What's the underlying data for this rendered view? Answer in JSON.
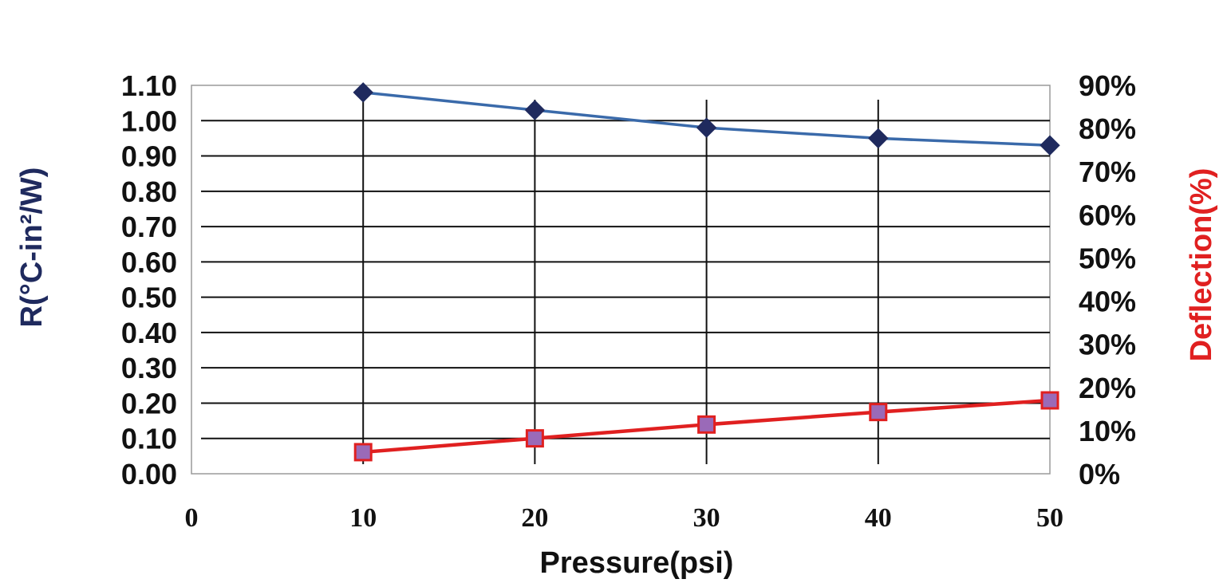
{
  "chart_data": {
    "type": "line",
    "title": "",
    "xlabel": "Pressure(psi)",
    "ylabel_left": "R(°C-in²/W)",
    "ylabel_right": "Deflection(%)",
    "x_ticks": [
      "0",
      "10",
      "20",
      "30",
      "40",
      "50"
    ],
    "xlim": [
      0,
      50
    ],
    "y_left_ticks": [
      "0.00",
      "0.10",
      "0.20",
      "0.30",
      "0.40",
      "0.50",
      "0.60",
      "0.70",
      "0.80",
      "0.90",
      "1.00",
      "1.10"
    ],
    "ylim_left": [
      0,
      1.1
    ],
    "y_right_ticks": [
      "0%",
      "10%",
      "20%",
      "30%",
      "40%",
      "50%",
      "60%",
      "70%",
      "80%",
      "90%"
    ],
    "ylim_right": [
      0,
      90
    ],
    "grid": true,
    "series": [
      {
        "axis": "left",
        "marker": "diamond",
        "color": "#3a6aaa",
        "marker_color": "#1f2a5e",
        "x": [
          10,
          20,
          30,
          40,
          50
        ],
        "values": [
          1.08,
          1.03,
          0.98,
          0.95,
          0.93
        ]
      },
      {
        "axis": "right",
        "marker": "square",
        "color": "#e02020",
        "marker_color": "#9a6ab8",
        "x": [
          10,
          20,
          30,
          40,
          50
        ],
        "values": [
          5,
          8.2,
          11.4,
          14.3,
          17
        ]
      }
    ],
    "colors": {
      "left_axis_title": "#1f2a5e",
      "right_axis_title": "#e02020",
      "grid": "#111111"
    }
  }
}
